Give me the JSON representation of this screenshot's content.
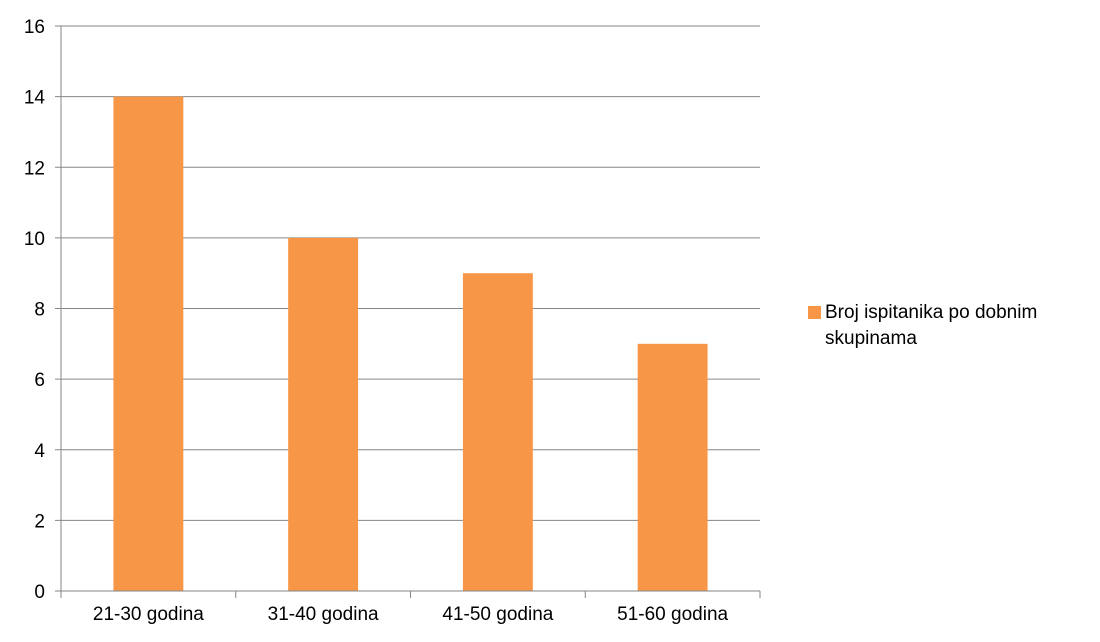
{
  "chart_data": {
    "type": "bar",
    "title": "",
    "xlabel": "",
    "ylabel": "",
    "categories": [
      "21-30 godina",
      "31-40 godina",
      "41-50 godina",
      "51-60 godina"
    ],
    "series": [
      {
        "name": "Broj ispitanika po dobnim skupinama",
        "values": [
          14,
          10,
          9,
          7
        ],
        "color": "#F79646"
      }
    ],
    "ylim": [
      0,
      16
    ],
    "yticks": [
      0,
      2,
      4,
      6,
      8,
      10,
      12,
      14,
      16
    ],
    "grid": true,
    "legend_position": "right"
  }
}
